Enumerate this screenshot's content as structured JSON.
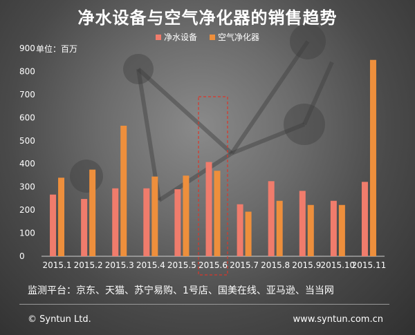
{
  "header": {
    "title": "净水设备与空气净化器的销售趋势",
    "unit": "单位：百万"
  },
  "footer": {
    "source": "监测平台：京东、天猫、苏宁易购、1号店、国美在线、亚马逊、当当网",
    "copyright": "© Syntun Ltd.",
    "website": "www.syntun.com.cn"
  },
  "colors": {
    "water": "#f07c6c",
    "air": "#ee8f3c",
    "highlight": "#d9372b"
  },
  "chart_data": {
    "type": "bar",
    "title": "净水设备与空气净化器的销售趋势",
    "categories": [
      "2015.1",
      "2015.2",
      "2015.3",
      "2015.4",
      "2015.5",
      "2015.6",
      "2015.7",
      "2015.8",
      "2015.9",
      "2015.10",
      "2015.11"
    ],
    "series": [
      {
        "name": "净水设备",
        "values": [
          267,
          248,
          294,
          294,
          290,
          408,
          225,
          325,
          283,
          240,
          322
        ]
      },
      {
        "name": "空气净化器",
        "values": [
          340,
          375,
          565,
          345,
          349,
          370,
          193,
          240,
          222,
          222,
          850
        ]
      }
    ],
    "ylim": [
      0,
      900
    ],
    "yticks": [
      0,
      100,
      200,
      300,
      400,
      500,
      600,
      700,
      800,
      900
    ],
    "highlighted_category": "2015.6",
    "grid": false,
    "legend_position": "top-center"
  }
}
